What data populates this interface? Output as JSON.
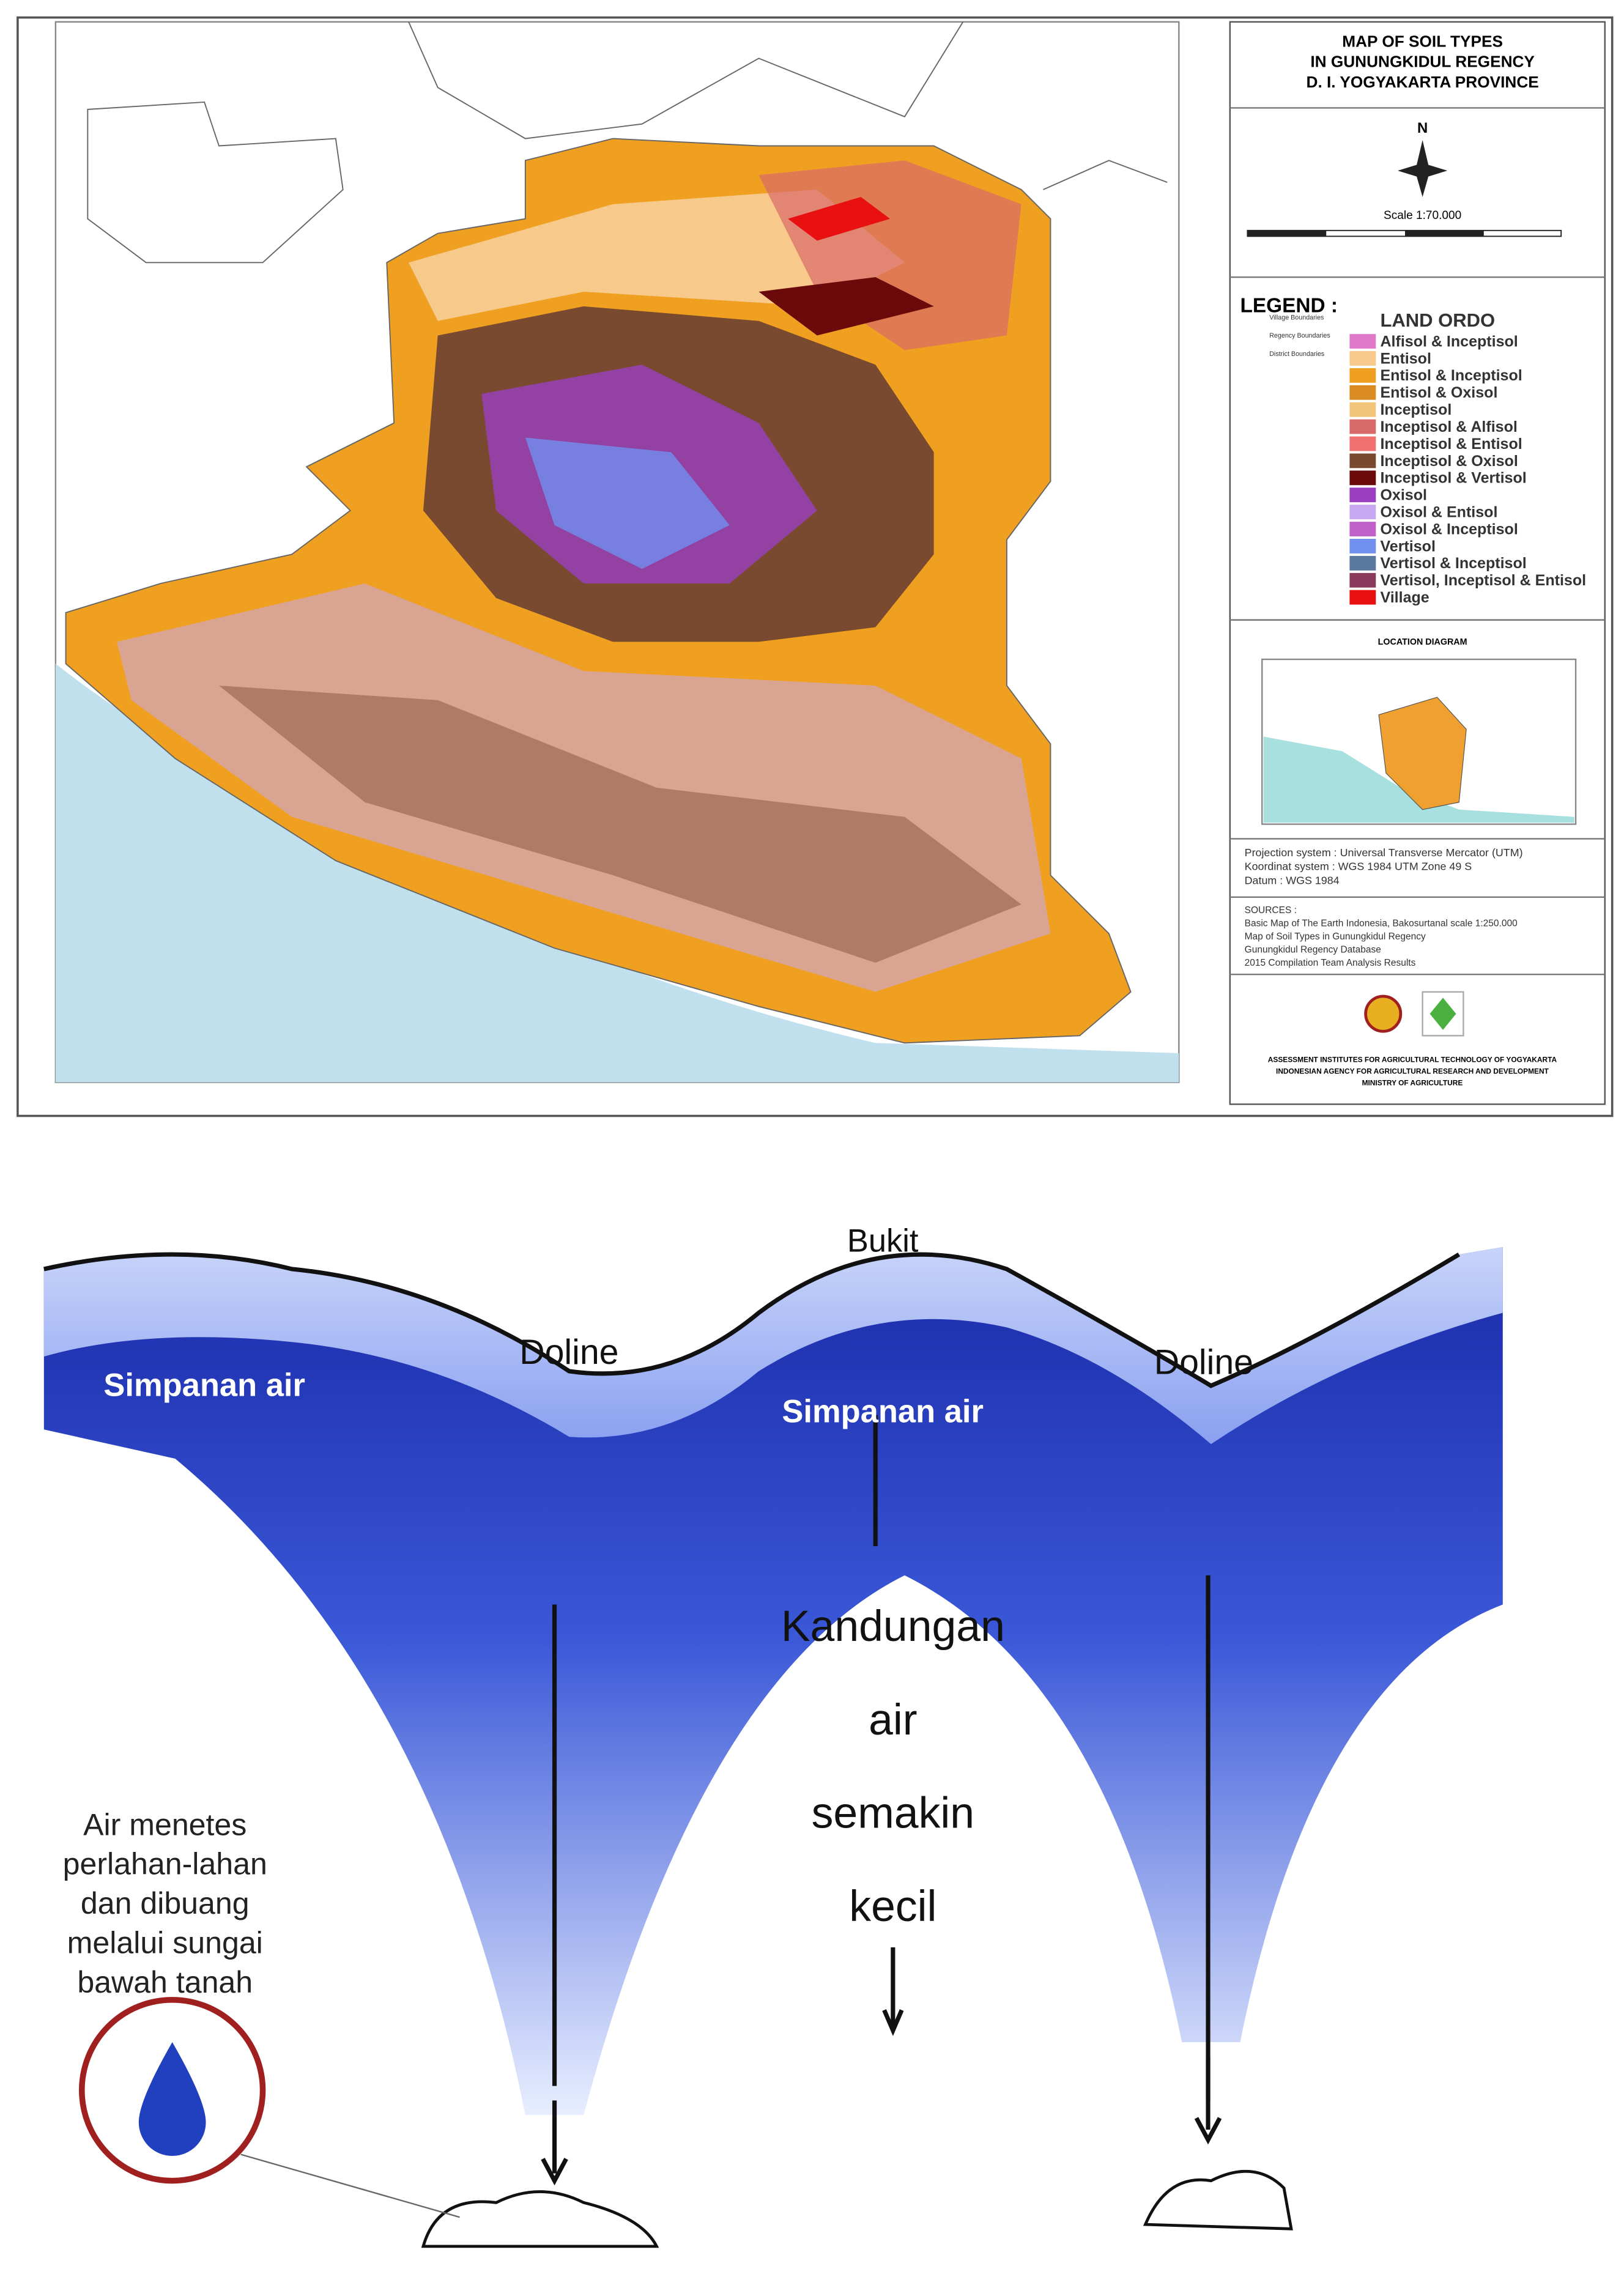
{
  "map": {
    "title": [
      "MAP OF SOIL TYPES",
      "IN GUNUNGKIDUL REGENCY",
      "D. I. YOGYAKARTA PROVINCE"
    ],
    "north": "N",
    "scale": "Scale 1:70.000",
    "legend_heading": "LEGEND :",
    "boundaries": [
      "Village Boundaries",
      "Regency Boundaries",
      "District Boundaries"
    ],
    "legend_title": "LAND ORDO",
    "legend": [
      {
        "label": "Alfisol & Inceptisol",
        "color": "#e07ac8"
      },
      {
        "label": "Entisol",
        "color": "#f7c98a"
      },
      {
        "label": "Entisol & Inceptisol",
        "color": "#f0a020"
      },
      {
        "label": "Entisol & Oxisol",
        "color": "#d98a20"
      },
      {
        "label": "Inceptisol",
        "color": "#f3c57a"
      },
      {
        "label": "Inceptisol & Alfisol",
        "color": "#d86a6a"
      },
      {
        "label": "Inceptisol & Entisol",
        "color": "#f07070"
      },
      {
        "label": "Inceptisol & Oxisol",
        "color": "#7a4a30"
      },
      {
        "label": "Inceptisol & Vertisol",
        "color": "#6a0a0a"
      },
      {
        "label": "Oxisol",
        "color": "#9a40c0"
      },
      {
        "label": "Oxisol & Entisol",
        "color": "#c8a8f0"
      },
      {
        "label": "Oxisol & Inceptisol",
        "color": "#c060c8"
      },
      {
        "label": "Vertisol",
        "color": "#7090f0"
      },
      {
        "label": "Vertisol & Inceptisol",
        "color": "#5a78a0"
      },
      {
        "label": "Vertisol, Inceptisol & Entisol",
        "color": "#8a3a5a"
      },
      {
        "label": "Village",
        "color": "#e81010"
      }
    ],
    "location_title": "LOCATION DIAGRAM",
    "projection": [
      "Projection system : Universal Transverse Mercator (UTM)",
      "Koordinat system  : WGS 1984 UTM Zone 49 S",
      "Datum                 : WGS 1984"
    ],
    "sources": [
      "SOURCES :",
      "Basic Map of The Earth Indonesia, Bakosurtanal scale 1:250.000",
      "Map of Soil Types in Gunungkidul Regency",
      "Gunungkidul Regency Database",
      "2015 Compilation Team Analysis Results"
    ],
    "institution": [
      "ASSESSMENT INSTITUTES FOR AGRICULTURAL TECHNOLOGY OF YOGYAKARTA",
      "INDONESIAN AGENCY FOR AGRICULTURAL RESEARCH AND DEVELOPMENT",
      "MINISTRY OF AGRICULTURE"
    ]
  },
  "diagram": {
    "hill": "Bukit",
    "dolines": [
      "Doline",
      "Doline"
    ],
    "storage": [
      "Simpanan air",
      "Simpanan air"
    ],
    "water_content": [
      "Kandungan",
      "air",
      "semakin",
      "kecil"
    ],
    "caption": [
      "Air menetes",
      "perlahan-lahan",
      "dan dibuang",
      "melalui sungai",
      "bawah tanah"
    ]
  }
}
